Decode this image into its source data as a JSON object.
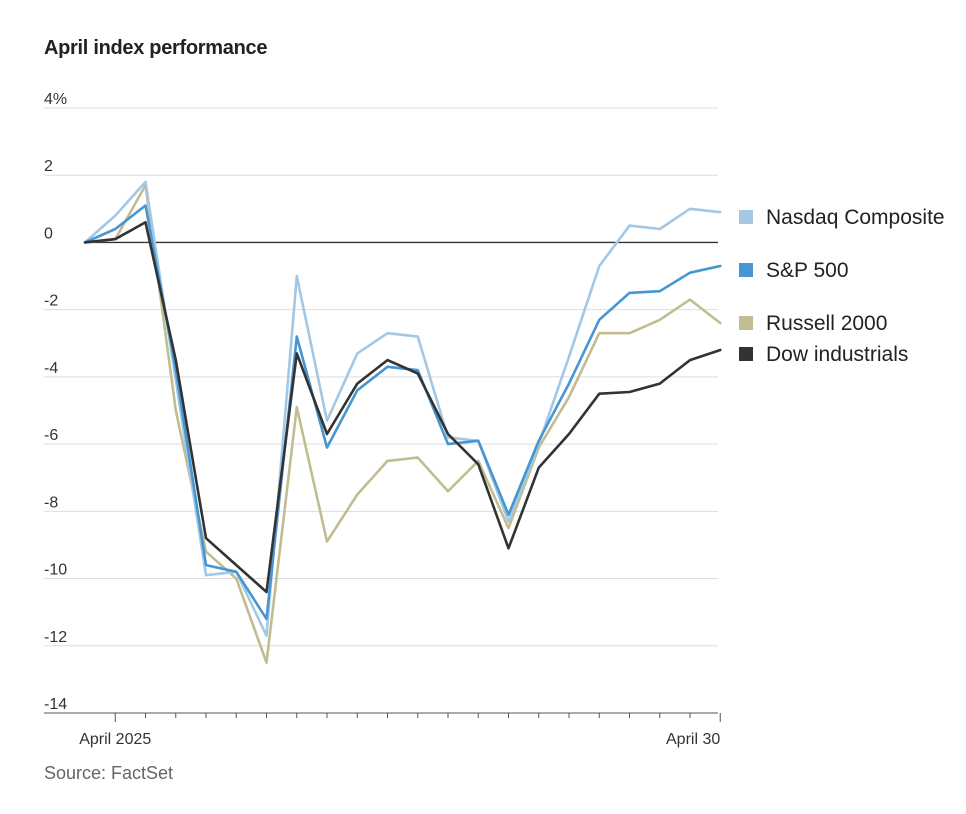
{
  "title": "April index performance",
  "source": "Source: FactSet",
  "chart_data": {
    "type": "line",
    "title": "April index performance",
    "xlabel": "",
    "ylabel": "",
    "ylim": [
      -14,
      4
    ],
    "y_ticks": [
      4,
      2,
      0,
      -2,
      -4,
      -6,
      -8,
      -10,
      -12,
      -14
    ],
    "y_tick_labels": [
      "4%",
      "2",
      "0",
      "-2",
      "-4",
      "-6",
      "-8",
      "-10",
      "-12",
      "-14"
    ],
    "x_tick_labels": [
      {
        "index": 1,
        "label": "April 2025"
      },
      {
        "index": 21,
        "label": "April 30"
      }
    ],
    "x_count": 22,
    "grid": true,
    "legend": "right",
    "series": [
      {
        "name": "Nasdaq Composite",
        "color": "#a3c8e6",
        "values": [
          0,
          0.8,
          1.8,
          -4.1,
          -9.9,
          -9.8,
          -11.7,
          -1,
          -5.3,
          -3.3,
          -2.7,
          -2.8,
          -5.8,
          -5.9,
          -8.3,
          -6,
          -3.4,
          -0.7,
          0.5,
          0.4,
          1,
          0.9
        ]
      },
      {
        "name": "S&P 500",
        "color": "#4696d2",
        "values": [
          0,
          0.4,
          1.1,
          -3.8,
          -9.6,
          -9.8,
          -11.2,
          -2.8,
          -6.1,
          -4.4,
          -3.7,
          -3.8,
          -6,
          -5.9,
          -8.1,
          -5.9,
          -4.2,
          -2.3,
          -1.5,
          -1.45,
          -0.9,
          -0.7
        ]
      },
      {
        "name": "Russell 2000",
        "color": "#c2bd90",
        "values": [
          0,
          0.1,
          1.7,
          -5,
          -9.2,
          -10,
          -12.5,
          -4.9,
          -8.9,
          -7.5,
          -6.5,
          -6.4,
          -7.4,
          -6.5,
          -8.5,
          -6.1,
          -4.6,
          -2.7,
          -2.7,
          -2.3,
          -1.7,
          -2.4
        ]
      },
      {
        "name": "Dow industrials",
        "color": "#333333",
        "values": [
          0,
          0.1,
          0.6,
          -3.5,
          -8.8,
          -9.6,
          -10.4,
          -3.3,
          -5.7,
          -4.2,
          -3.5,
          -3.9,
          -5.7,
          -6.6,
          -9.1,
          -6.7,
          -5.7,
          -4.5,
          -4.45,
          -4.2,
          -3.5,
          -3.2
        ]
      }
    ]
  }
}
